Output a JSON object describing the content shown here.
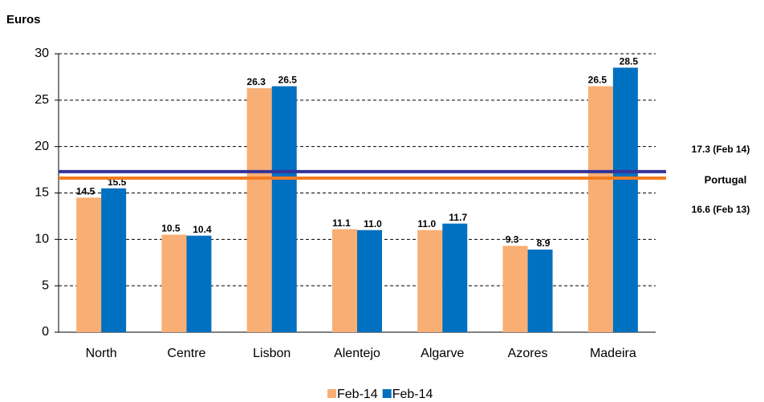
{
  "chart_data": {
    "type": "bar",
    "y_label": "Euros",
    "categories": [
      "North",
      "Centre",
      "Lisbon",
      "Alentejo",
      "Algarve",
      "Azores",
      "Madeira"
    ],
    "series": [
      {
        "name": "Feb-14",
        "color": "#f9ae74",
        "values": [
          14.5,
          10.5,
          26.3,
          11.1,
          11.0,
          9.3,
          26.5
        ],
        "value_labels": [
          "14.5",
          "10.5",
          "26.3",
          "11.1",
          "11.0",
          "9.3",
          "26.5"
        ]
      },
      {
        "name": "Feb-14",
        "color": "#0070c0",
        "values": [
          15.5,
          10.4,
          26.5,
          11.0,
          11.7,
          8.9,
          28.5
        ],
        "value_labels": [
          "15.5",
          "10.4",
          "26.5",
          "11.0",
          "11.7",
          "8.9",
          "28.5"
        ]
      }
    ],
    "reference_lines": [
      {
        "value": 17.3,
        "label": "17.3 (Feb 14)",
        "color": "#33339a",
        "label_color": "#1f7fd0"
      },
      {
        "value": 16.6,
        "label": "16.6 (Feb 13)",
        "color": "#f47b20",
        "label_color": "#f47b20"
      }
    ],
    "reference_title": "Portugal",
    "ylim": [
      0,
      30
    ],
    "yticks": [
      0,
      5,
      10,
      15,
      20,
      25,
      30
    ],
    "grid": true
  }
}
